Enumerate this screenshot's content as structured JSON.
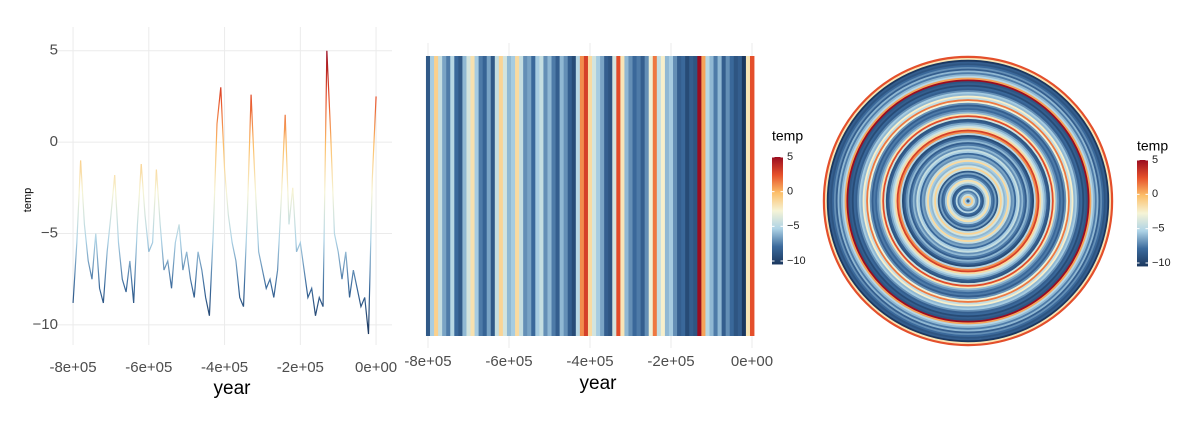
{
  "chart_data": [
    {
      "type": "line",
      "x_label": "year",
      "y_label": "temp",
      "x": [
        -800000,
        -790000,
        -780000,
        -770000,
        -760000,
        -750000,
        -740000,
        -730000,
        -720000,
        -710000,
        -700000,
        -690000,
        -680000,
        -670000,
        -660000,
        -650000,
        -640000,
        -630000,
        -620000,
        -610000,
        -600000,
        -590000,
        -580000,
        -570000,
        -560000,
        -550000,
        -540000,
        -530000,
        -520000,
        -510000,
        -500000,
        -490000,
        -480000,
        -470000,
        -460000,
        -450000,
        -440000,
        -430000,
        -420000,
        -410000,
        -400000,
        -390000,
        -380000,
        -370000,
        -360000,
        -350000,
        -340000,
        -330000,
        -320000,
        -310000,
        -300000,
        -290000,
        -280000,
        -270000,
        -260000,
        -250000,
        -240000,
        -230000,
        -220000,
        -210000,
        -200000,
        -190000,
        -180000,
        -170000,
        -160000,
        -150000,
        -140000,
        -130000,
        -120000,
        -110000,
        -100000,
        -90000,
        -80000,
        -70000,
        -60000,
        -50000,
        -40000,
        -30000,
        -20000,
        -10000,
        0
      ],
      "values": [
        -8.8,
        -5.5,
        -1.0,
        -4.5,
        -6.5,
        -7.5,
        -5.0,
        -8.0,
        -8.8,
        -6.0,
        -4.0,
        -1.8,
        -5.5,
        -7.5,
        -8.2,
        -6.5,
        -8.8,
        -4.5,
        -1.2,
        -4.0,
        -6.0,
        -5.5,
        -1.5,
        -4.5,
        -7.0,
        -6.5,
        -8.0,
        -5.5,
        -4.5,
        -7.0,
        -6.0,
        -7.5,
        -8.5,
        -6.0,
        -7.0,
        -8.5,
        -9.5,
        -5.0,
        1.0,
        3.0,
        -1.5,
        -4.0,
        -5.5,
        -6.5,
        -8.5,
        -9.0,
        -4.0,
        2.6,
        -2.0,
        -6.0,
        -7.0,
        -8.0,
        -7.5,
        -8.5,
        -7.0,
        -3.0,
        1.5,
        -4.5,
        -2.5,
        -6.0,
        -5.5,
        -7.0,
        -8.5,
        -8.0,
        -9.5,
        -8.5,
        -9.0,
        5.0,
        0.5,
        -5.0,
        -6.0,
        -7.5,
        -6.0,
        -8.5,
        -7.0,
        -8.0,
        -9.0,
        -8.5,
        -10.5,
        -2.0,
        2.5
      ],
      "colors": [
        "#1b375e",
        "#3b6a9c",
        "#aed3e6",
        "#f6f4d6",
        "#fcbf69",
        "#e6512b",
        "#9a0c20"
      ],
      "xlim": [
        -845000,
        42000
      ],
      "ylim": [
        -11.1,
        6.3
      ],
      "xticks": [
        {
          "value": -800000,
          "label": "-8e+05"
        },
        {
          "value": -600000,
          "label": "-6e+05"
        },
        {
          "value": -400000,
          "label": "-4e+05"
        },
        {
          "value": -200000,
          "label": "-2e+05"
        },
        {
          "value": 0,
          "label": "0e+00"
        }
      ],
      "yticks": [
        {
          "value": -10,
          "label": "−10"
        },
        {
          "value": -5,
          "label": "−5"
        },
        {
          "value": 0,
          "label": "0"
        },
        {
          "value": 5,
          "label": "5"
        }
      ],
      "grid": true
    },
    {
      "type": "stripes",
      "x_label": "year",
      "legend_title": "temp",
      "x": [
        -800000,
        -790000,
        -780000,
        -770000,
        -760000,
        -750000,
        -740000,
        -730000,
        -720000,
        -710000,
        -700000,
        -690000,
        -680000,
        -670000,
        -660000,
        -650000,
        -640000,
        -630000,
        -620000,
        -610000,
        -600000,
        -590000,
        -580000,
        -570000,
        -560000,
        -550000,
        -540000,
        -530000,
        -520000,
        -510000,
        -500000,
        -490000,
        -480000,
        -470000,
        -460000,
        -450000,
        -440000,
        -430000,
        -420000,
        -410000,
        -400000,
        -390000,
        -380000,
        -370000,
        -360000,
        -350000,
        -340000,
        -330000,
        -320000,
        -310000,
        -300000,
        -290000,
        -280000,
        -270000,
        -260000,
        -250000,
        -240000,
        -230000,
        -220000,
        -210000,
        -200000,
        -190000,
        -180000,
        -170000,
        -160000,
        -150000,
        -140000,
        -130000,
        -120000,
        -110000,
        -100000,
        -90000,
        -80000,
        -70000,
        -60000,
        -50000,
        -40000,
        -30000,
        -20000,
        -10000,
        0
      ],
      "values": [
        -8.8,
        -5.5,
        -1.0,
        -4.5,
        -6.5,
        -7.5,
        -5.0,
        -8.0,
        -8.8,
        -6.0,
        -4.0,
        -1.8,
        -5.5,
        -7.5,
        -8.2,
        -6.5,
        -8.8,
        -4.5,
        -1.2,
        -4.0,
        -6.0,
        -5.5,
        -1.5,
        -4.5,
        -7.0,
        -6.5,
        -8.0,
        -5.5,
        -4.5,
        -7.0,
        -6.0,
        -7.5,
        -8.5,
        -6.0,
        -7.0,
        -8.5,
        -9.5,
        -5.0,
        1.0,
        3.0,
        -1.5,
        -4.0,
        -5.5,
        -6.5,
        -8.5,
        -9.0,
        -4.0,
        2.6,
        -2.0,
        -6.0,
        -7.0,
        -8.0,
        -7.5,
        -8.5,
        -7.0,
        -3.0,
        1.5,
        -4.5,
        -2.5,
        -6.0,
        -5.5,
        -7.0,
        -8.5,
        -8.0,
        -9.5,
        -8.5,
        -9.0,
        5.0,
        0.5,
        -5.0,
        -6.0,
        -7.5,
        -6.0,
        -8.5,
        -7.0,
        -8.0,
        -9.0,
        -8.5,
        -10.5,
        -2.0,
        2.5
      ],
      "colors": [
        "#1b375e",
        "#3b6a9c",
        "#aed3e6",
        "#f6f4d6",
        "#fcbf69",
        "#e6512b",
        "#9a0c20"
      ],
      "xlim": [
        -837000,
        39500
      ],
      "xticks": [
        {
          "value": -800000,
          "label": "-8e+05"
        },
        {
          "value": -600000,
          "label": "-6e+05"
        },
        {
          "value": -400000,
          "label": "-4e+05"
        },
        {
          "value": -200000,
          "label": "-2e+05"
        },
        {
          "value": 0,
          "label": "0e+00"
        }
      ],
      "legend_ticks": [
        {
          "value": -10,
          "label": "−10"
        },
        {
          "value": -5,
          "label": "−5"
        },
        {
          "value": 0,
          "label": "0"
        },
        {
          "value": 5,
          "label": "5"
        }
      ],
      "grid": true
    },
    {
      "type": "rings",
      "legend_title": "temp",
      "x": [
        -800000,
        -790000,
        -780000,
        -770000,
        -760000,
        -750000,
        -740000,
        -730000,
        -720000,
        -710000,
        -700000,
        -690000,
        -680000,
        -670000,
        -660000,
        -650000,
        -640000,
        -630000,
        -620000,
        -610000,
        -600000,
        -590000,
        -580000,
        -570000,
        -560000,
        -550000,
        -540000,
        -530000,
        -520000,
        -510000,
        -500000,
        -490000,
        -480000,
        -470000,
        -460000,
        -450000,
        -440000,
        -430000,
        -420000,
        -410000,
        -400000,
        -390000,
        -380000,
        -370000,
        -360000,
        -350000,
        -340000,
        -330000,
        -320000,
        -310000,
        -300000,
        -290000,
        -280000,
        -270000,
        -260000,
        -250000,
        -240000,
        -230000,
        -220000,
        -210000,
        -200000,
        -190000,
        -180000,
        -170000,
        -160000,
        -150000,
        -140000,
        -130000,
        -120000,
        -110000,
        -100000,
        -90000,
        -80000,
        -70000,
        -60000,
        -50000,
        -40000,
        -30000,
        -20000,
        -10000,
        0
      ],
      "values": [
        -8.8,
        -5.5,
        -1.0,
        -4.5,
        -6.5,
        -7.5,
        -5.0,
        -8.0,
        -8.8,
        -6.0,
        -4.0,
        -1.8,
        -5.5,
        -7.5,
        -8.2,
        -6.5,
        -8.8,
        -4.5,
        -1.2,
        -4.0,
        -6.0,
        -5.5,
        -1.5,
        -4.5,
        -7.0,
        -6.5,
        -8.0,
        -5.5,
        -4.5,
        -7.0,
        -6.0,
        -7.5,
        -8.5,
        -6.0,
        -7.0,
        -8.5,
        -9.5,
        -5.0,
        1.0,
        3.0,
        -1.5,
        -4.0,
        -5.5,
        -6.5,
        -8.5,
        -9.0,
        -4.0,
        2.6,
        -2.0,
        -6.0,
        -7.0,
        -8.0,
        -7.5,
        -8.5,
        -7.0,
        -3.0,
        1.5,
        -4.5,
        -2.5,
        -6.0,
        -5.5,
        -7.0,
        -8.5,
        -8.0,
        -9.5,
        -8.5,
        -9.0,
        5.0,
        0.5,
        -5.0,
        -6.0,
        -7.5,
        -6.0,
        -8.5,
        -7.0,
        -8.0,
        -9.0,
        -8.5,
        -10.5,
        -2.0,
        2.5
      ],
      "colors": [
        "#1b375e",
        "#3b6a9c",
        "#aed3e6",
        "#f6f4d6",
        "#fcbf69",
        "#e6512b",
        "#9a0c20"
      ],
      "legend_ticks": [
        {
          "value": -10,
          "label": "−10"
        },
        {
          "value": -5,
          "label": "−5"
        },
        {
          "value": 0,
          "label": "0"
        },
        {
          "value": 5,
          "label": "5"
        }
      ]
    }
  ]
}
